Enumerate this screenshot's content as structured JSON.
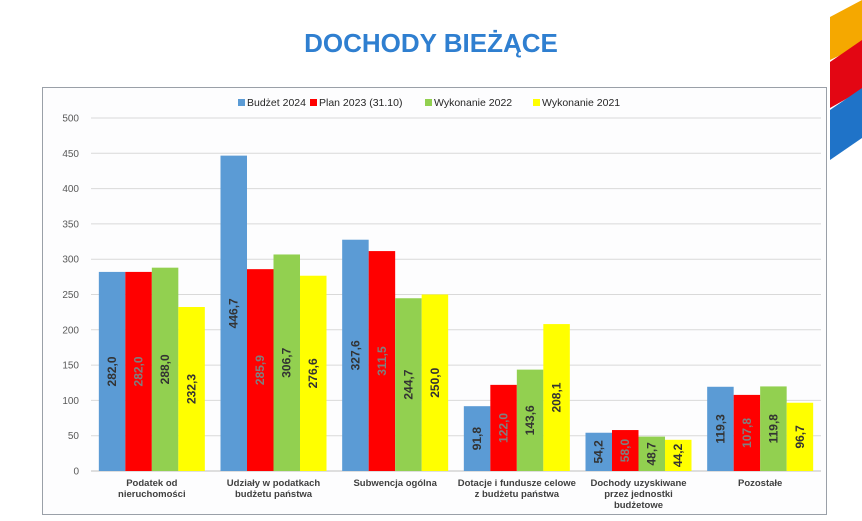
{
  "page": {
    "title": "DOCHODY BIEŻĄCE"
  },
  "chart_data": {
    "type": "bar",
    "title": "",
    "xlabel": "",
    "ylabel": "",
    "ylim": [
      0,
      500
    ],
    "yticks": [
      "0",
      "50",
      "100",
      "150",
      "200",
      "250",
      "300",
      "350",
      "400",
      "450",
      "500"
    ],
    "grid": true,
    "legend_position": "top",
    "categories": [
      [
        "Podatek od",
        "nieruchomości"
      ],
      [
        "Udziały w podatkach",
        "budżetu państwa"
      ],
      [
        "Subwencja ogólna"
      ],
      [
        "Dotacje i fundusze celowe",
        "z budżetu państwa"
      ],
      [
        "Dochody uzyskiwane",
        "przez jednostki",
        "budżetowe"
      ],
      [
        "Pozostałe"
      ]
    ],
    "series": [
      {
        "name": "Budżet 2024",
        "color": "#5b9bd5",
        "values": [
          282.0,
          446.7,
          327.6,
          91.8,
          54.2,
          119.3
        ],
        "labels": [
          "282,0",
          "446,7",
          "327,6",
          "91,8",
          "54,2",
          "119,3"
        ]
      },
      {
        "name": "Plan 2023 (31.10)",
        "color": "#ff0000",
        "values": [
          282.0,
          285.9,
          311.5,
          122.0,
          58.0,
          107.8
        ],
        "labels": [
          "282,0",
          "285,9",
          "311,5",
          "122,0",
          "58,0",
          "107,8"
        ]
      },
      {
        "name": "Wykonanie 2022",
        "color": "#92d050",
        "values": [
          288.0,
          306.7,
          244.7,
          143.6,
          48.7,
          119.8
        ],
        "labels": [
          "288,0",
          "306,7",
          "244,7",
          "143,6",
          "48,7",
          "119,8"
        ]
      },
      {
        "name": "Wykonanie 2021",
        "color": "#ffff00",
        "values": [
          232.3,
          276.6,
          250.0,
          208.1,
          44.2,
          96.7
        ],
        "labels": [
          "232,3",
          "276,6",
          "250,0",
          "208,1",
          "44,2",
          "96,7"
        ]
      }
    ]
  },
  "decoration": {
    "colors": [
      "#f5a800",
      "#e30613",
      "#1f73c8"
    ]
  }
}
